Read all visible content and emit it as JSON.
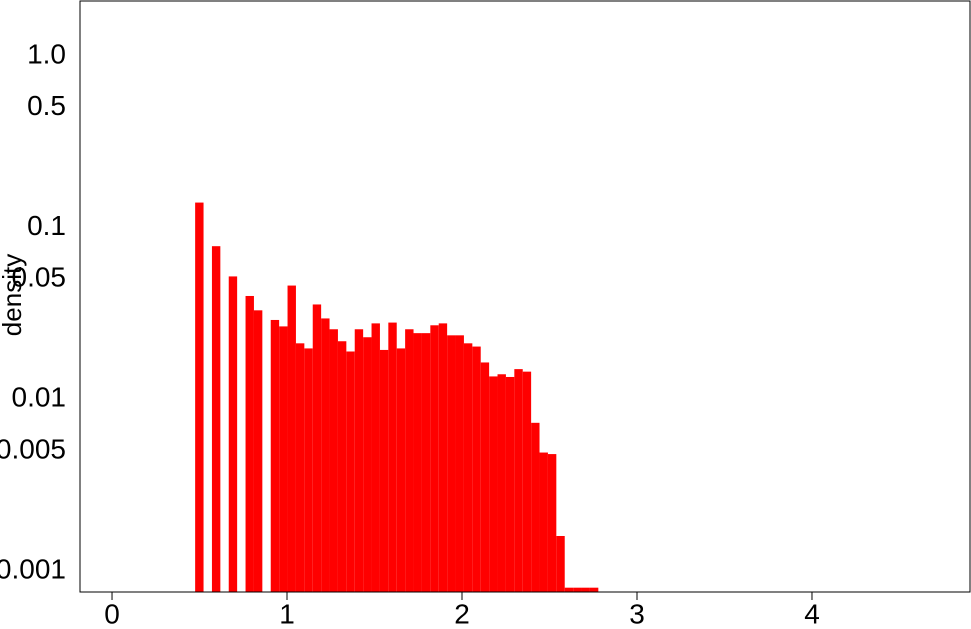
{
  "chart_data": {
    "type": "histogram",
    "ylabel": "density",
    "color": "#ff0000",
    "log_y": true,
    "bins": [
      0.475,
      0.523,
      0.571,
      0.619,
      0.667,
      0.715,
      0.763,
      0.811,
      0.859,
      0.907,
      0.955,
      1.003,
      1.051,
      1.099,
      1.147,
      1.195,
      1.243,
      1.291,
      1.339,
      1.387,
      1.435,
      1.483,
      1.531,
      1.579,
      1.627,
      1.675,
      1.723,
      1.771,
      1.819,
      1.867,
      1.915,
      1.963,
      2.011,
      2.059,
      2.107,
      2.155,
      2.203,
      2.251,
      2.299,
      2.347,
      2.395,
      2.443,
      2.491,
      2.539,
      2.587,
      2.635,
      2.683,
      2.731,
      2.779
    ],
    "counts": [
      0.14,
      0,
      0.078,
      0,
      0.052,
      0,
      0.04,
      0.033,
      0,
      0.029,
      0.0266,
      0.046,
      0.0212,
      0.0198,
      0.0357,
      0.0296,
      0.0256,
      0.0218,
      0.019,
      0.0256,
      0.023,
      0.0277,
      0.0194,
      0.028,
      0.0198,
      0.0256,
      0.0243,
      0.0243,
      0.027,
      0.0277,
      0.0236,
      0.0236,
      0.0212,
      0.0203,
      0.0164,
      0.0136,
      0.014,
      0.0135,
      0.015,
      0.0145,
      0.0073,
      0.0049,
      0.0048,
      0.0016,
      0.0008,
      0.0008,
      0.0008,
      0.0008
    ],
    "xlim": [
      -0.183,
      4.903
    ],
    "xticks": [
      0,
      1,
      2,
      3,
      4
    ],
    "ylim": [
      0.000755,
      2.09
    ],
    "yticks": [
      {
        "value": 1,
        "label": "1.0"
      },
      0.5,
      0.1,
      0.05,
      0.01,
      0.005,
      0.001
    ]
  }
}
